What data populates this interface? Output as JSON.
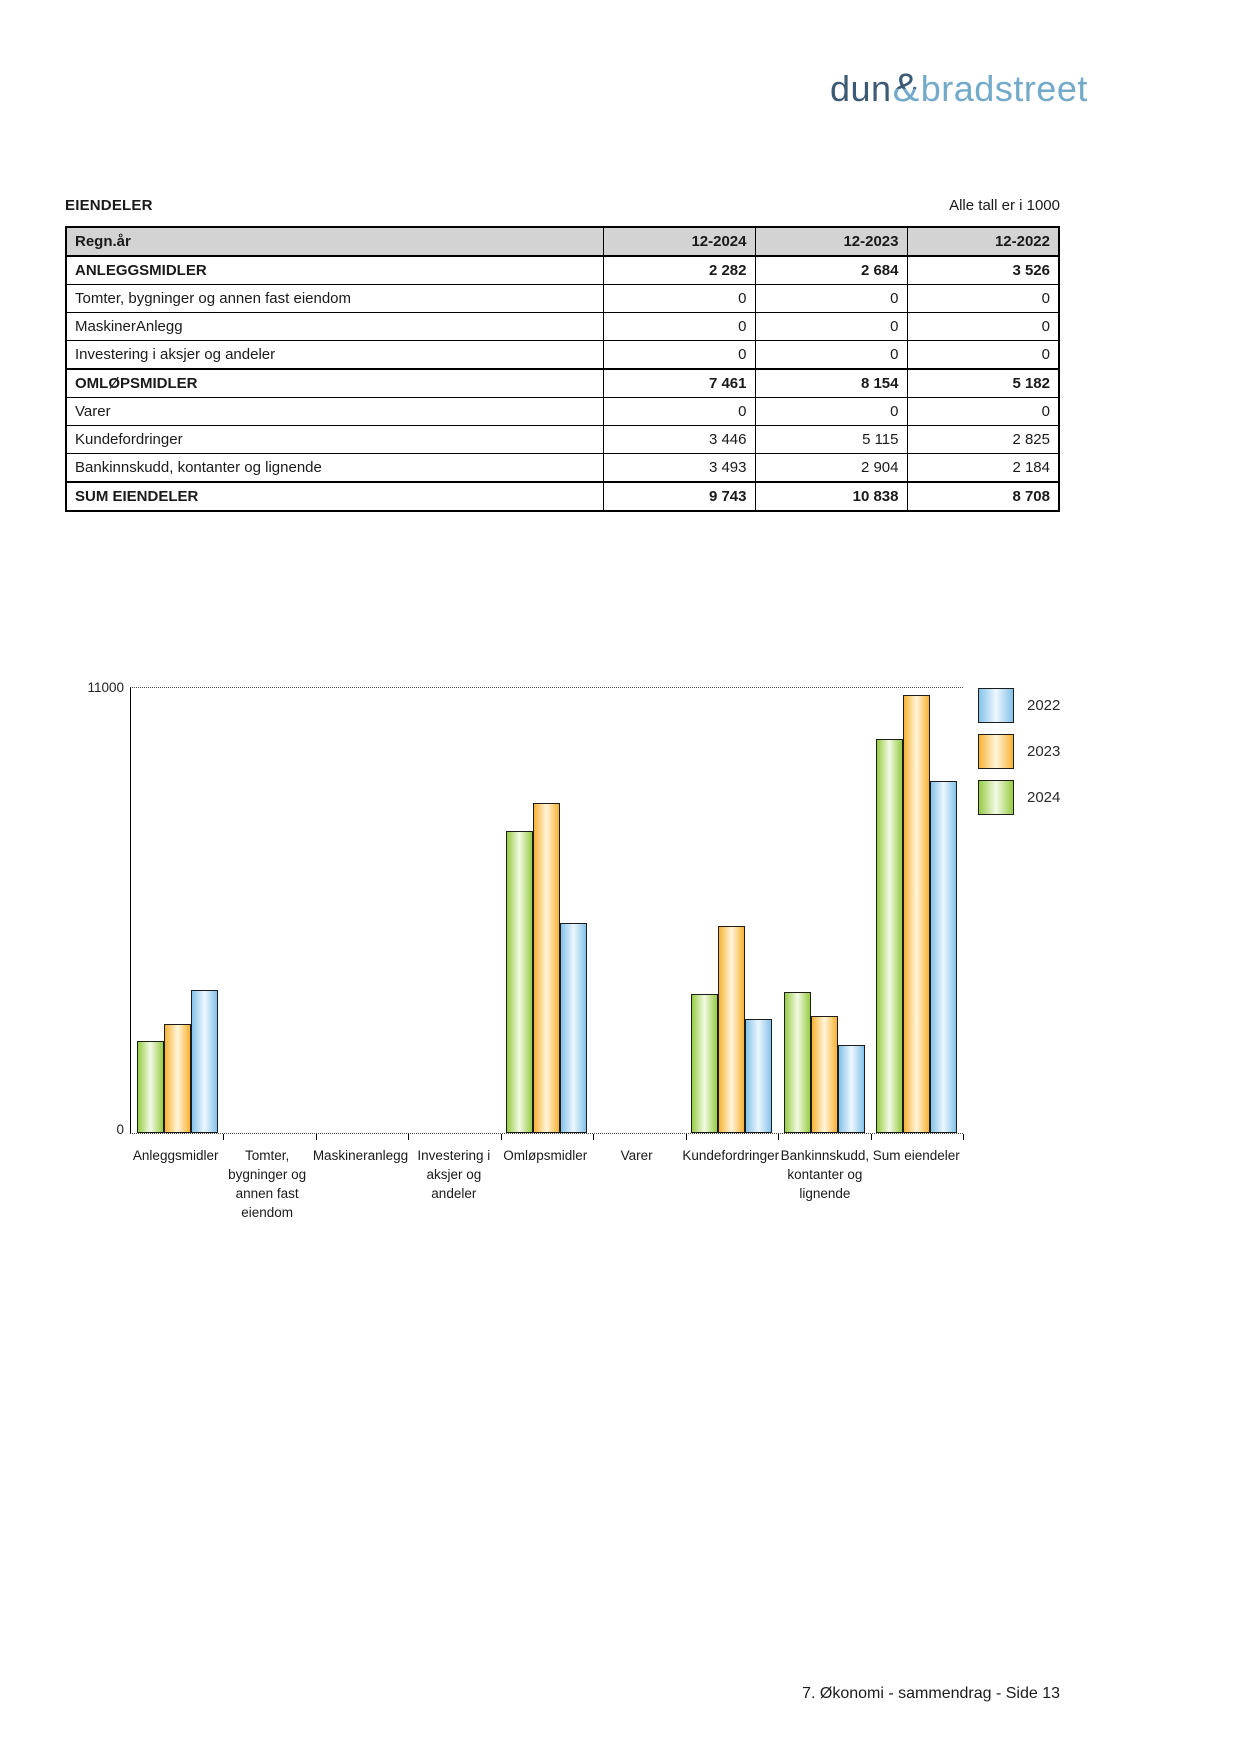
{
  "logo": {
    "part1": "dun",
    "amp": "&",
    "part2": "bradstreet",
    "color_dark": "#3c5a73",
    "color_light": "#73a9c9"
  },
  "table_section": {
    "title": "EIENDELER",
    "unit_note": "Alle tall er i 1000",
    "columns": [
      "Regn.år",
      "12-2024",
      "12-2023",
      "12-2022"
    ],
    "rows": [
      {
        "label": "ANLEGGSMIDLER",
        "bold": true,
        "values": [
          "2 282",
          "2 684",
          "3 526"
        ]
      },
      {
        "label": "Tomter, bygninger og annen fast eiendom",
        "bold": false,
        "values": [
          "0",
          "0",
          "0"
        ]
      },
      {
        "label": "MaskinerAnlegg",
        "bold": false,
        "values": [
          "0",
          "0",
          "0"
        ]
      },
      {
        "label": "Investering i aksjer og andeler",
        "bold": false,
        "values": [
          "0",
          "0",
          "0"
        ]
      },
      {
        "label": "OMLØPSMIDLER",
        "bold": true,
        "values": [
          "7 461",
          "8 154",
          "5 182"
        ]
      },
      {
        "label": "Varer",
        "bold": false,
        "values": [
          "0",
          "0",
          "0"
        ]
      },
      {
        "label": "Kundefordringer",
        "bold": false,
        "values": [
          "3 446",
          "5 115",
          "2 825"
        ]
      },
      {
        "label": "Bankinnskudd, kontanter og lignende",
        "bold": false,
        "values": [
          "3 493",
          "2 904",
          "2 184"
        ]
      },
      {
        "label": "SUM EIENDELER",
        "bold": true,
        "values": [
          "9 743",
          "10 838",
          "8 708"
        ]
      }
    ]
  },
  "chart_data": {
    "type": "bar",
    "title": "",
    "xlabel": "",
    "ylabel": "",
    "ylim": [
      0,
      11000
    ],
    "y_max_label": "11000",
    "y_min_label": "0",
    "grid": "dotted top line at 11000, dotted baseline at 0",
    "legend_position": "top-right",
    "categories": [
      "Anleggsmidler",
      "Tomter, bygninger og annen fast eiendom",
      "Maskineranlegg",
      "Investering i aksjer og andeler",
      "Omløpsmidler",
      "Varer",
      "Kundefordringer",
      "Bankinnskudd, kontanter og lignende",
      "Sum eiendeler"
    ],
    "category_lines": [
      [
        "Anleggsmidler"
      ],
      [
        "Tomter,",
        "bygninger og",
        "annen fast",
        "eiendom"
      ],
      [
        "Maskineranlegg"
      ],
      [
        "Investering i",
        "aksjer og",
        "andeler"
      ],
      [
        "Omløpsmidler"
      ],
      [
        "Varer"
      ],
      [
        "Kundefordringer"
      ],
      [
        "Bankinnskudd,",
        "kontanter og",
        "lignende"
      ],
      [
        "Sum eiendeler"
      ]
    ],
    "bar_order": [
      "2024",
      "2023",
      "2022"
    ],
    "legend_order": [
      "2022",
      "2023",
      "2024"
    ],
    "series": [
      {
        "name": "2024",
        "color_edge": "#97cc44",
        "color_center": "#f3fae5",
        "values": [
          2282,
          0,
          0,
          0,
          7461,
          0,
          3446,
          3493,
          9743
        ]
      },
      {
        "name": "2023",
        "color_edge": "#f9b233",
        "color_center": "#fff6dc",
        "values": [
          2684,
          0,
          0,
          0,
          8154,
          0,
          5115,
          2904,
          10838
        ]
      },
      {
        "name": "2022",
        "color_edge": "#84c3ea",
        "color_center": "#edf7fd",
        "values": [
          3526,
          0,
          0,
          0,
          5182,
          0,
          2825,
          2184,
          8708
        ]
      }
    ]
  },
  "footer": {
    "page_label": "7. Økonomi - sammendrag - Side 13"
  }
}
